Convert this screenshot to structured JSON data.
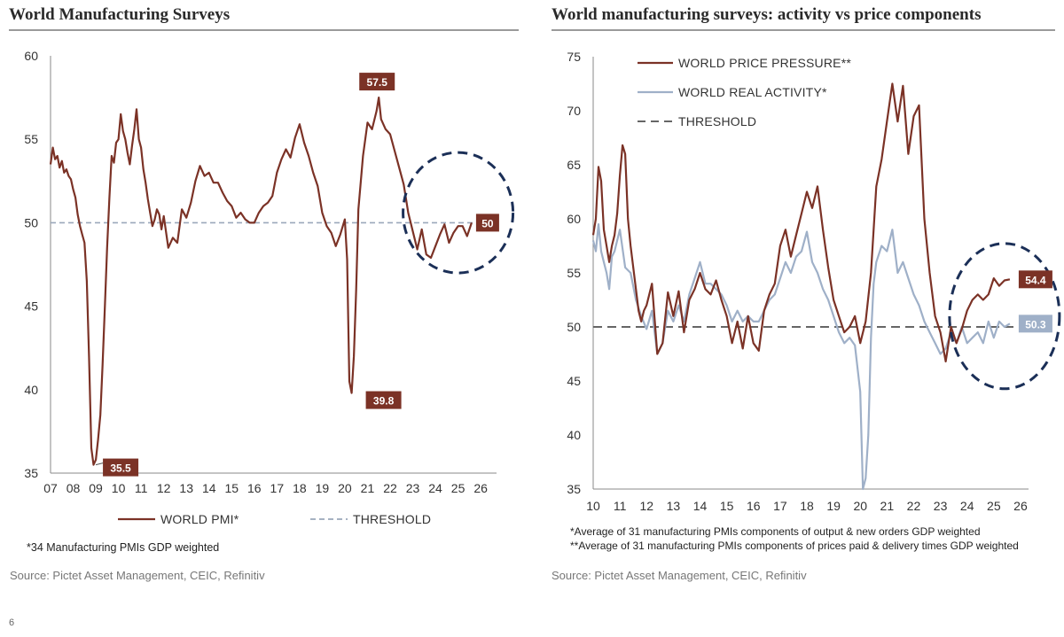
{
  "left": {
    "title": "World Manufacturing Surveys",
    "footnote": "*34 Manufacturing PMIs GDP weighted",
    "source": "Source: Pictet Asset Management, CEIC, Refinitiv"
  },
  "right": {
    "title": "World manufacturing surveys: activity vs price components",
    "footnote1": "*Average of 31 manufacturing PMIs components of output  & new orders GDP weighted",
    "footnote2": "**Average of 31 manufacturing PMIs components of prices paid & delivery times GDP weighted",
    "source": "Source: Pictet Asset Management, CEIC, Refinitiv"
  },
  "page_number": "6",
  "colors": {
    "pmi": "#7b3226",
    "activity": "#9fb0c8",
    "threshold_left": "#9aa8ba",
    "threshold_right": "#666666",
    "circle": "#1b2f57",
    "label_pmi": "#7b3226",
    "label_activity": "#9fb0c8"
  },
  "chart_data": [
    {
      "type": "line",
      "title": "World Manufacturing Surveys",
      "xlim": [
        2007,
        2026.7
      ],
      "ylim": [
        35,
        60
      ],
      "x_ticks": [
        "07",
        "08",
        "09",
        "10",
        "11",
        "12",
        "13",
        "14",
        "15",
        "16",
        "17",
        "18",
        "19",
        "20",
        "21",
        "22",
        "23",
        "24",
        "25",
        "26"
      ],
      "y_ticks": [
        35,
        40,
        45,
        50,
        55,
        60
      ],
      "legend_position": "bottom",
      "threshold": 50,
      "series": [
        {
          "name": "WORLD PMI*",
          "x": [
            2007.0,
            2007.1,
            2007.2,
            2007.3,
            2007.4,
            2007.5,
            2007.6,
            2007.7,
            2007.8,
            2007.9,
            2008.0,
            2008.1,
            2008.2,
            2008.3,
            2008.4,
            2008.5,
            2008.6,
            2008.7,
            2008.8,
            2008.9,
            2009.0,
            2009.1,
            2009.2,
            2009.3,
            2009.4,
            2009.5,
            2009.6,
            2009.7,
            2009.8,
            2009.9,
            2010.0,
            2010.1,
            2010.2,
            2010.3,
            2010.4,
            2010.5,
            2010.6,
            2010.7,
            2010.8,
            2010.9,
            2011.0,
            2011.1,
            2011.2,
            2011.3,
            2011.4,
            2011.5,
            2011.6,
            2011.7,
            2011.8,
            2011.9,
            2012.0,
            2012.2,
            2012.4,
            2012.6,
            2012.8,
            2013.0,
            2013.2,
            2013.4,
            2013.6,
            2013.8,
            2014.0,
            2014.2,
            2014.4,
            2014.6,
            2014.8,
            2015.0,
            2015.2,
            2015.4,
            2015.6,
            2015.8,
            2016.0,
            2016.2,
            2016.4,
            2016.6,
            2016.8,
            2017.0,
            2017.2,
            2017.4,
            2017.6,
            2017.8,
            2018.0,
            2018.2,
            2018.4,
            2018.6,
            2018.8,
            2019.0,
            2019.2,
            2019.4,
            2019.6,
            2019.8,
            2020.0,
            2020.1,
            2020.2,
            2020.3,
            2020.4,
            2020.5,
            2020.6,
            2020.8,
            2021.0,
            2021.2,
            2021.4,
            2021.5,
            2021.6,
            2021.8,
            2022.0,
            2022.2,
            2022.4,
            2022.6,
            2022.8,
            2023.0,
            2023.2,
            2023.4,
            2023.6,
            2023.8,
            2024.0,
            2024.2,
            2024.4,
            2024.6,
            2024.8,
            2025.0,
            2025.2,
            2025.4,
            2025.6
          ],
          "values": [
            53.5,
            54.5,
            53.8,
            54.0,
            53.3,
            53.7,
            53.0,
            53.2,
            52.8,
            52.6,
            52.0,
            51.5,
            50.5,
            49.8,
            49.3,
            48.8,
            46.5,
            42.0,
            36.5,
            35.5,
            35.8,
            37.0,
            38.5,
            41.5,
            45.0,
            48.5,
            51.5,
            54.0,
            53.6,
            54.8,
            55.0,
            56.5,
            55.5,
            55.0,
            54.2,
            53.5,
            54.6,
            55.6,
            56.8,
            55.0,
            54.5,
            53.2,
            52.4,
            51.4,
            50.6,
            49.8,
            50.2,
            50.8,
            50.5,
            49.6,
            50.4,
            48.5,
            49.1,
            48.8,
            50.8,
            50.3,
            51.2,
            52.5,
            53.4,
            52.8,
            53.0,
            52.4,
            52.4,
            51.8,
            51.3,
            51.0,
            50.3,
            50.6,
            50.2,
            50.0,
            50.0,
            50.6,
            51.0,
            51.2,
            51.6,
            53.0,
            53.8,
            54.4,
            53.9,
            55.1,
            55.9,
            54.8,
            54.0,
            53.0,
            52.2,
            50.6,
            49.8,
            49.4,
            48.6,
            49.3,
            50.2,
            47.8,
            40.5,
            39.8,
            42.0,
            46.0,
            50.8,
            54.0,
            56.0,
            55.6,
            56.7,
            57.5,
            56.2,
            55.6,
            55.3,
            54.3,
            53.3,
            52.3,
            50.6,
            49.5,
            48.4,
            49.6,
            48.1,
            47.9,
            48.6,
            49.3,
            49.9,
            48.8,
            49.4,
            49.8,
            49.8,
            49.2,
            50.0
          ]
        },
        {
          "name": "THRESHOLD",
          "values": [
            50
          ]
        }
      ],
      "annotations": [
        {
          "text": "35.5",
          "x": 2009.0,
          "y": 35.5
        },
        {
          "text": "39.8",
          "x": 2020.3,
          "y": 39.8
        },
        {
          "text": "57.5",
          "x": 2021.5,
          "y": 57.5
        },
        {
          "text": "50",
          "x": 2025.6,
          "y": 50.0
        }
      ]
    },
    {
      "type": "line",
      "title": "World manufacturing surveys: activity vs price components",
      "xlim": [
        2010,
        2026.3
      ],
      "ylim": [
        35,
        75
      ],
      "x_ticks": [
        "10",
        "11",
        "12",
        "13",
        "14",
        "15",
        "16",
        "17",
        "18",
        "19",
        "20",
        "21",
        "22",
        "23",
        "24",
        "25",
        "26"
      ],
      "y_ticks": [
        35,
        40,
        45,
        50,
        55,
        60,
        65,
        70,
        75
      ],
      "legend_position": "top-left",
      "threshold": 50,
      "series": [
        {
          "name": "WORLD PRICE PRESSURE**",
          "x": [
            2010.0,
            2010.1,
            2010.2,
            2010.3,
            2010.4,
            2010.5,
            2010.6,
            2010.7,
            2010.8,
            2010.9,
            2011.0,
            2011.1,
            2011.2,
            2011.3,
            2011.4,
            2011.5,
            2011.6,
            2011.7,
            2011.8,
            2011.9,
            2012.0,
            2012.2,
            2012.4,
            2012.6,
            2012.8,
            2013.0,
            2013.2,
            2013.4,
            2013.6,
            2013.8,
            2014.0,
            2014.2,
            2014.4,
            2014.6,
            2014.8,
            2015.0,
            2015.2,
            2015.4,
            2015.6,
            2015.8,
            2016.0,
            2016.2,
            2016.4,
            2016.6,
            2016.8,
            2017.0,
            2017.2,
            2017.4,
            2017.6,
            2017.8,
            2018.0,
            2018.2,
            2018.4,
            2018.6,
            2018.8,
            2019.0,
            2019.2,
            2019.4,
            2019.6,
            2019.8,
            2020.0,
            2020.2,
            2020.4,
            2020.6,
            2020.8,
            2021.0,
            2021.2,
            2021.4,
            2021.6,
            2021.8,
            2022.0,
            2022.2,
            2022.4,
            2022.6,
            2022.8,
            2023.0,
            2023.2,
            2023.4,
            2023.6,
            2023.8,
            2024.0,
            2024.2,
            2024.4,
            2024.6,
            2024.8,
            2025.0,
            2025.2,
            2025.4,
            2025.6
          ],
          "values": [
            58.5,
            60.0,
            64.8,
            63.5,
            59.0,
            57.5,
            56.0,
            57.5,
            58.5,
            60.5,
            64.0,
            66.8,
            66.0,
            60.0,
            57.5,
            55.5,
            53.5,
            51.5,
            50.5,
            51.5,
            52.0,
            54.0,
            47.5,
            48.5,
            53.2,
            51.0,
            53.3,
            49.5,
            52.5,
            53.5,
            55.0,
            53.5,
            53.0,
            54.3,
            52.5,
            51.0,
            48.5,
            50.5,
            48.0,
            51.0,
            48.5,
            47.8,
            51.5,
            53.0,
            54.0,
            57.5,
            59.0,
            56.5,
            58.5,
            60.5,
            62.5,
            61.0,
            63.0,
            59.0,
            55.5,
            52.5,
            51.0,
            49.5,
            50.0,
            51.0,
            48.5,
            50.5,
            55.0,
            63.0,
            65.5,
            69.0,
            72.5,
            69.0,
            72.3,
            66.0,
            69.5,
            70.5,
            60.0,
            55.0,
            51.0,
            49.5,
            46.8,
            50.0,
            48.5,
            49.8,
            51.5,
            52.5,
            53.0,
            52.5,
            53.0,
            54.5,
            53.8,
            54.3,
            54.4
          ]
        },
        {
          "name": "WORLD REAL ACTIVITY*",
          "x": [
            2010.0,
            2010.1,
            2010.2,
            2010.3,
            2010.4,
            2010.5,
            2010.6,
            2010.7,
            2010.8,
            2010.9,
            2011.0,
            2011.2,
            2011.4,
            2011.6,
            2011.8,
            2012.0,
            2012.2,
            2012.4,
            2012.6,
            2012.8,
            2013.0,
            2013.2,
            2013.4,
            2013.6,
            2013.8,
            2014.0,
            2014.2,
            2014.4,
            2014.6,
            2014.8,
            2015.0,
            2015.2,
            2015.4,
            2015.6,
            2015.8,
            2016.0,
            2016.2,
            2016.4,
            2016.6,
            2016.8,
            2017.0,
            2017.2,
            2017.4,
            2017.6,
            2017.8,
            2018.0,
            2018.2,
            2018.4,
            2018.6,
            2018.8,
            2019.0,
            2019.2,
            2019.4,
            2019.6,
            2019.8,
            2020.0,
            2020.1,
            2020.2,
            2020.3,
            2020.4,
            2020.5,
            2020.6,
            2020.8,
            2021.0,
            2021.2,
            2021.4,
            2021.6,
            2021.8,
            2022.0,
            2022.2,
            2022.4,
            2022.6,
            2022.8,
            2023.0,
            2023.2,
            2023.4,
            2023.6,
            2023.8,
            2024.0,
            2024.2,
            2024.4,
            2024.6,
            2024.8,
            2025.0,
            2025.2,
            2025.4,
            2025.6
          ],
          "values": [
            58.0,
            57.0,
            59.5,
            57.0,
            56.0,
            55.0,
            53.5,
            56.5,
            57.0,
            58.0,
            59.0,
            55.5,
            55.0,
            52.5,
            51.0,
            49.8,
            51.5,
            47.5,
            48.5,
            51.5,
            50.5,
            52.0,
            50.5,
            53.0,
            54.5,
            56.0,
            54.0,
            54.0,
            53.5,
            53.0,
            52.0,
            50.5,
            51.5,
            50.5,
            51.0,
            50.5,
            50.5,
            51.5,
            52.5,
            53.0,
            54.5,
            56.0,
            55.0,
            56.5,
            57.0,
            58.8,
            56.0,
            55.0,
            53.5,
            52.5,
            51.0,
            49.5,
            48.5,
            49.0,
            48.3,
            44.0,
            35.0,
            36.0,
            40.0,
            49.0,
            54.0,
            56.0,
            57.5,
            57.0,
            59.0,
            55.0,
            56.0,
            54.5,
            53.0,
            52.0,
            50.5,
            49.5,
            48.5,
            47.5,
            48.0,
            49.5,
            48.5,
            50.0,
            48.5,
            49.0,
            49.5,
            48.5,
            50.5,
            49.0,
            50.5,
            50.0,
            50.3
          ]
        },
        {
          "name": "THRESHOLD",
          "values": [
            50
          ]
        }
      ],
      "annotations": [
        {
          "text": "54.4",
          "x": 2025.6,
          "y": 54.4
        },
        {
          "text": "50.3",
          "x": 2025.6,
          "y": 50.3
        }
      ]
    }
  ],
  "legend_left": {
    "pmi": "WORLD PMI*",
    "threshold": "THRESHOLD"
  },
  "legend_right": {
    "price": "WORLD PRICE PRESSURE**",
    "activity": "WORLD REAL ACTIVITY*",
    "threshold": "THRESHOLD"
  }
}
